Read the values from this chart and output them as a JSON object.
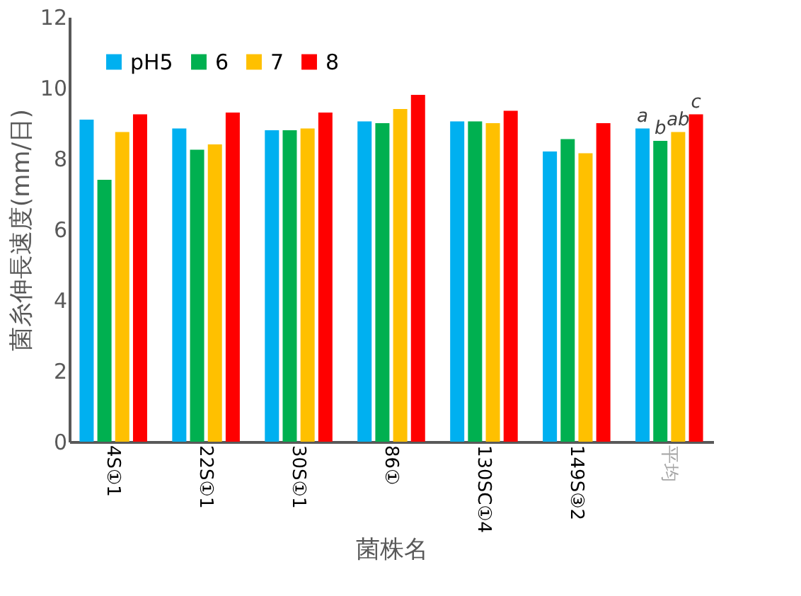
{
  "chart_data": {
    "type": "bar",
    "xlabel": "菌株名",
    "ylabel": "菌糸伸長速度(mm/日)",
    "categories": [
      "4S①1",
      "22S①1",
      "30S①1",
      "86①",
      "130SC①4",
      "149S③2",
      "平均"
    ],
    "series": [
      {
        "name": "pH5",
        "color": "#00b0f0",
        "values": [
          9.1,
          8.85,
          8.8,
          9.05,
          9.05,
          8.2,
          8.85
        ]
      },
      {
        "name": "6",
        "color": "#00b050",
        "values": [
          7.4,
          8.25,
          8.8,
          9.0,
          9.05,
          8.55,
          8.5
        ]
      },
      {
        "name": "7",
        "color": "#ffc000",
        "values": [
          8.75,
          8.4,
          8.85,
          9.4,
          9.0,
          8.15,
          8.75
        ]
      },
      {
        "name": "8",
        "color": "#ff0000",
        "values": [
          9.25,
          9.3,
          9.3,
          9.8,
          9.35,
          9.0,
          9.25
        ]
      }
    ],
    "ylim": [
      0,
      12
    ],
    "yticks": [
      0,
      2,
      4,
      6,
      8,
      10,
      12
    ],
    "grid": false,
    "legend": "top left",
    "annotations": [
      "a",
      "b",
      "ab",
      "c"
    ]
  }
}
